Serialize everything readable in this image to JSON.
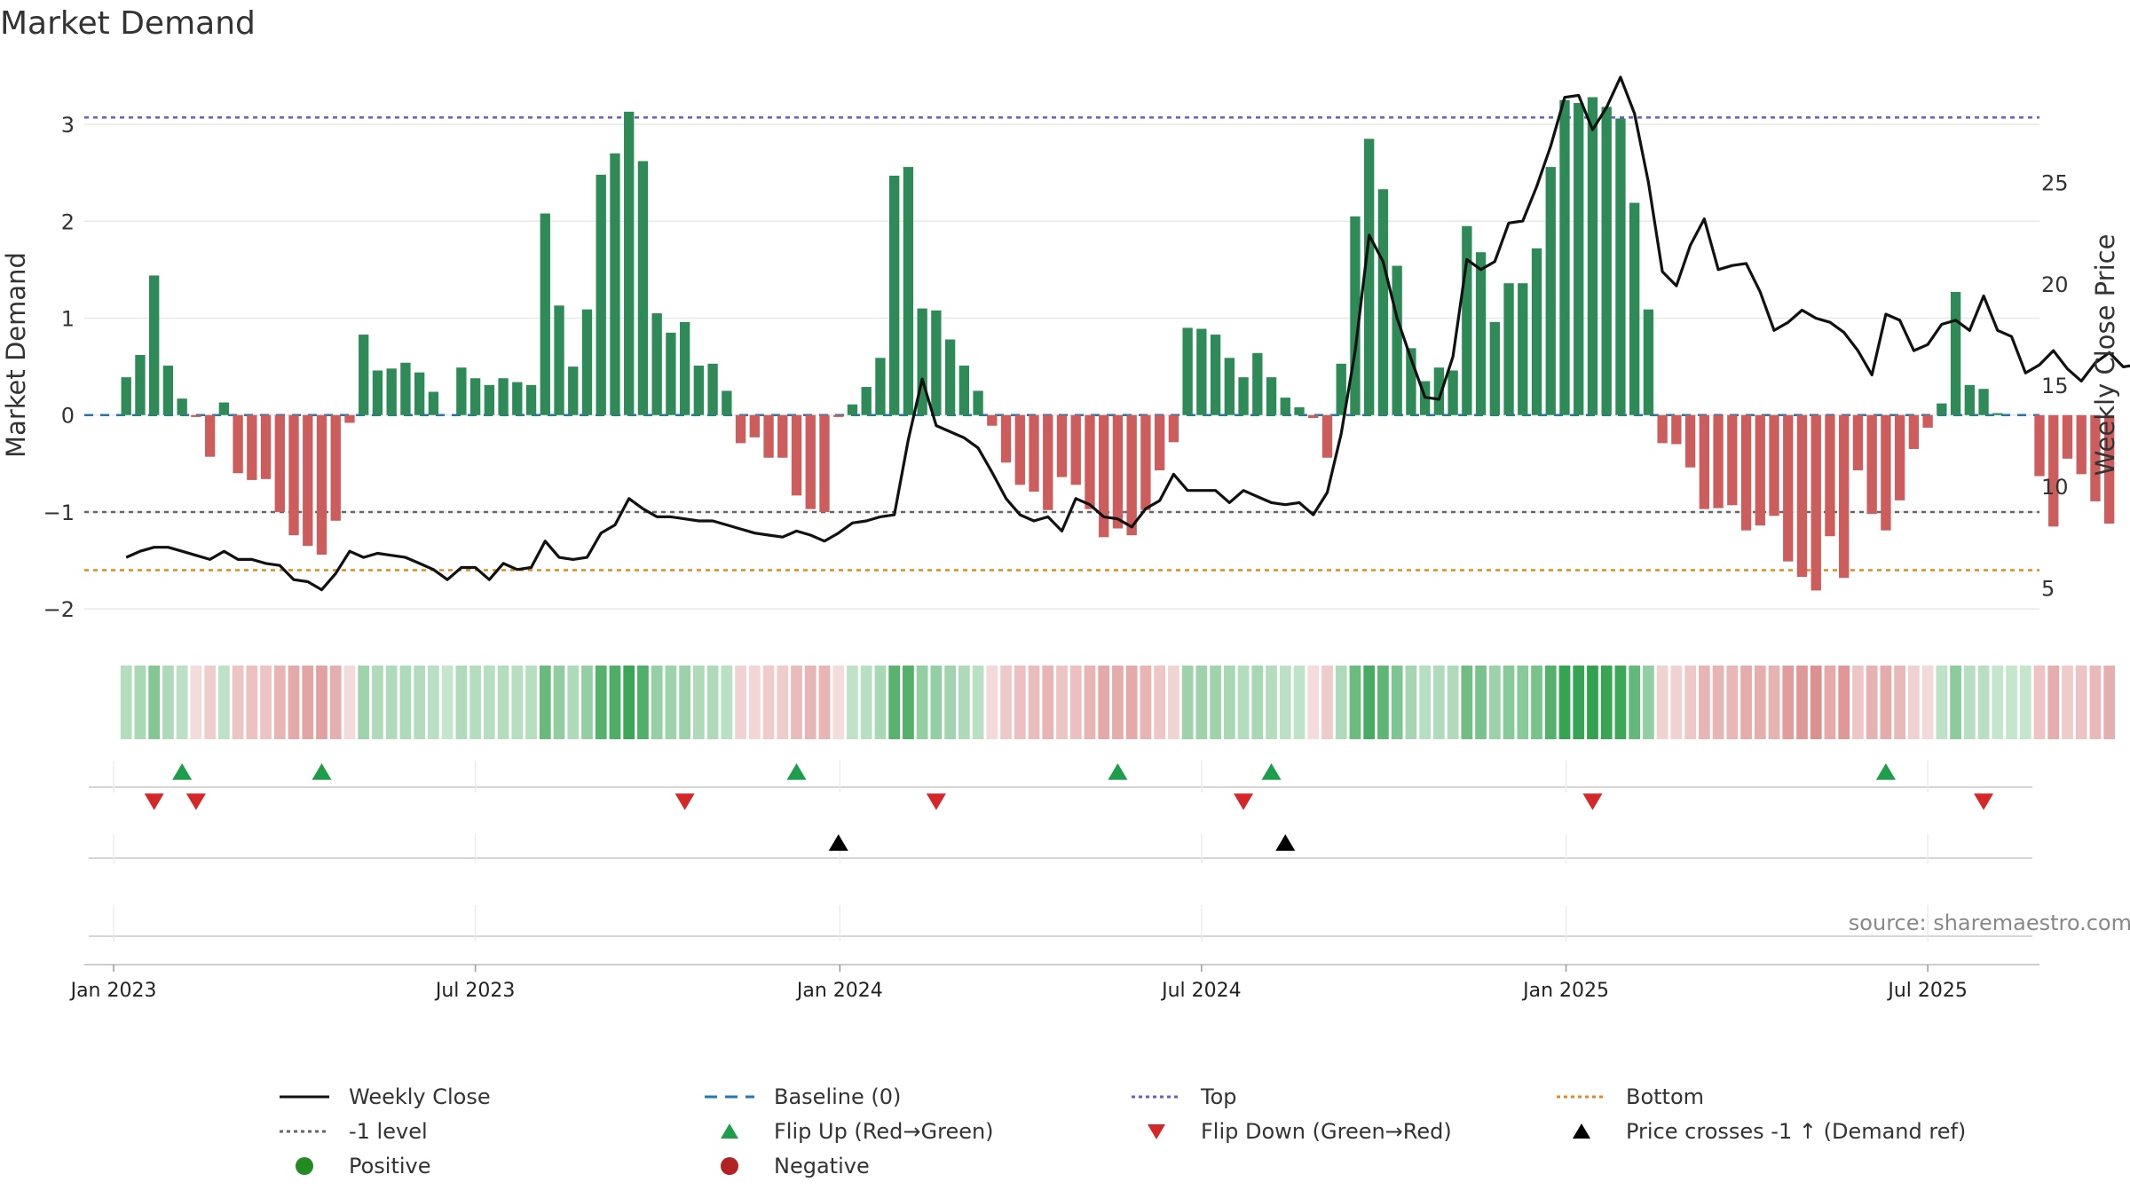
{
  "title": "Market Demand",
  "source": "source: sharemaestro.com",
  "colors": {
    "positive": "#2e8b57",
    "negative": "#cd5c5c",
    "close": "#111111",
    "baseline": "#1f77b4",
    "top": "#6a5acd",
    "minus1": "#666666",
    "bottom": "#e08a1e",
    "flip_up": "#1e9e4a",
    "flip_down": "#d62728",
    "cross": "#000000",
    "dot_positive": "#228b22",
    "dot_negative": "#b22222"
  },
  "legend": [
    {
      "key": "close",
      "label": "Weekly Close",
      "style": "solid"
    },
    {
      "key": "baseline",
      "label": "Baseline (0)",
      "style": "dashed"
    },
    {
      "key": "top",
      "label": "Top",
      "style": "dotted"
    },
    {
      "key": "bottom",
      "label": "Bottom",
      "style": "dotted"
    },
    {
      "key": "minus1",
      "label": "-1 level",
      "style": "dotted"
    },
    {
      "key": "flip_up",
      "label": "Flip Up (Red→Green)",
      "style": "tri-up"
    },
    {
      "key": "flip_down",
      "label": "Flip Down (Green→Red)",
      "style": "tri-down"
    },
    {
      "key": "cross",
      "label": "Price crosses -1 ↑ (Demand ref)",
      "style": "tri-up"
    },
    {
      "key": "dot_positive",
      "label": "Positive",
      "style": "dot"
    },
    {
      "key": "dot_negative",
      "label": "Negative",
      "style": "dot"
    }
  ],
  "chart_data": {
    "type": "bar",
    "title": "Market Demand",
    "ylabel": "Market Demand",
    "y2label": "Weekly Close Price",
    "ylim": [
      -2.2,
      3.55
    ],
    "y2lim": [
      3.0,
      30.5
    ],
    "yticks": [
      -2,
      -1,
      0,
      1,
      2,
      3
    ],
    "yticklabels": [
      "−2",
      "−1",
      "0",
      "1",
      "2",
      "3"
    ],
    "y2ticks": [
      5,
      10,
      15,
      20,
      25
    ],
    "levels": {
      "top": 3.07,
      "minus1": -1.0,
      "bottom": -1.6,
      "baseline": 0
    },
    "xdomain": [
      -3.0,
      137.0
    ],
    "xticks": [
      {
        "label": "Jan 2023",
        "week": -0.9
      },
      {
        "label": "Jul 2023",
        "week": 25.0
      },
      {
        "label": "Jan 2024",
        "week": 51.1
      },
      {
        "label": "Jul 2024",
        "week": 77.0
      },
      {
        "label": "Jan 2025",
        "week": 103.1
      },
      {
        "label": "Jul 2025",
        "week": 129.0
      }
    ],
    "demand": [
      0.39,
      0.62,
      1.44,
      0.51,
      0.17,
      -0.02,
      -0.43,
      0.13,
      -0.6,
      -0.67,
      -0.66,
      -1.0,
      -1.24,
      -1.35,
      -1.44,
      -1.09,
      -0.08,
      0.83,
      0.46,
      0.48,
      0.54,
      0.44,
      0.24,
      0,
      0.49,
      0.38,
      0.31,
      0.38,
      0.34,
      0.31,
      2.08,
      1.13,
      0.5,
      1.09,
      2.48,
      2.7,
      3.13,
      2.62,
      1.05,
      0.85,
      0.96,
      0.51,
      0.53,
      0.25,
      -0.29,
      -0.23,
      -0.44,
      -0.44,
      -0.83,
      -0.97,
      -1.0,
      -0.02,
      0.11,
      0.29,
      0.59,
      2.47,
      2.56,
      1.1,
      1.08,
      0.78,
      0.51,
      0.25,
      -0.11,
      -0.49,
      -0.72,
      -0.79,
      -0.98,
      -0.64,
      -0.72,
      -0.97,
      -1.26,
      -1.17,
      -1.24,
      -0.98,
      -0.57,
      -0.28,
      0.9,
      0.89,
      0.83,
      0.59,
      0.39,
      0.64,
      0.39,
      0.18,
      0.08,
      -0.03,
      -0.44,
      0.53,
      2.05,
      2.85,
      2.33,
      1.54,
      0.69,
      0.35,
      0.49,
      0.46,
      1.95,
      1.68,
      0.96,
      1.36,
      1.36,
      1.72,
      2.56,
      3.25,
      3.22,
      3.28,
      3.18,
      3.06,
      2.19,
      1.09,
      -0.29,
      -0.3,
      -0.54,
      -0.97,
      -0.96,
      -0.93,
      -1.19,
      -1.14,
      -1.04,
      -1.51,
      -1.67,
      -1.81,
      -1.25,
      -1.68,
      -0.57,
      -1.02,
      -1.19,
      -0.88,
      -0.35,
      -0.13,
      0.12,
      1.27,
      0.31,
      0.27,
      0.02,
      0.0,
      0,
      -0.63,
      -1.15,
      -0.45,
      -0.61,
      -0.89,
      -1.12
    ],
    "close": [
      6.5,
      6.8,
      7.0,
      7.0,
      6.8,
      6.6,
      6.4,
      6.8,
      6.4,
      6.4,
      6.2,
      6.1,
      5.4,
      5.3,
      4.9,
      5.7,
      6.8,
      6.5,
      6.7,
      6.6,
      6.5,
      6.2,
      5.9,
      5.4,
      6.0,
      6.0,
      5.4,
      6.2,
      5.9,
      6.0,
      7.3,
      6.5,
      6.4,
      6.5,
      7.7,
      8.1,
      9.4,
      8.9,
      8.5,
      8.5,
      8.4,
      8.3,
      8.3,
      8.1,
      7.9,
      7.7,
      7.6,
      7.5,
      7.8,
      7.6,
      7.3,
      7.7,
      8.2,
      8.3,
      8.5,
      8.6,
      12.3,
      15.3,
      13.0,
      12.7,
      12.4,
      11.9,
      10.7,
      9.4,
      8.6,
      8.3,
      8.5,
      7.8,
      9.4,
      9.1,
      8.5,
      8.4,
      8.0,
      8.9,
      9.3,
      10.6,
      9.8,
      9.8,
      9.8,
      9.2,
      9.8,
      9.5,
      9.2,
      9.1,
      9.2,
      8.6,
      9.7,
      12.6,
      16.7,
      22.4,
      21.1,
      18.3,
      16.3,
      14.4,
      14.3,
      16.4,
      21.2,
      20.7,
      21.1,
      23.0,
      23.1,
      24.8,
      26.8,
      29.2,
      29.3,
      27.6,
      28.7,
      30.2,
      28.4,
      25.0,
      20.6,
      19.9,
      21.9,
      23.2,
      20.7,
      20.9,
      21.0,
      19.6,
      17.7,
      18.1,
      18.7,
      18.3,
      18.1,
      17.6,
      16.7,
      15.5,
      18.5,
      18.2,
      16.7,
      17.0,
      18.0,
      18.2,
      17.7,
      19.4,
      17.7,
      17.4,
      15.6,
      16.0,
      16.7,
      15.8,
      15.2,
      16.1,
      16.6,
      15.9,
      16.0
    ]
  },
  "markers": {
    "flip_up": [
      4,
      14,
      48,
      71,
      82,
      126
    ],
    "flip_down": [
      2,
      5,
      40,
      58,
      80,
      105,
      133
    ],
    "cross_minus1": [
      51,
      83
    ]
  }
}
